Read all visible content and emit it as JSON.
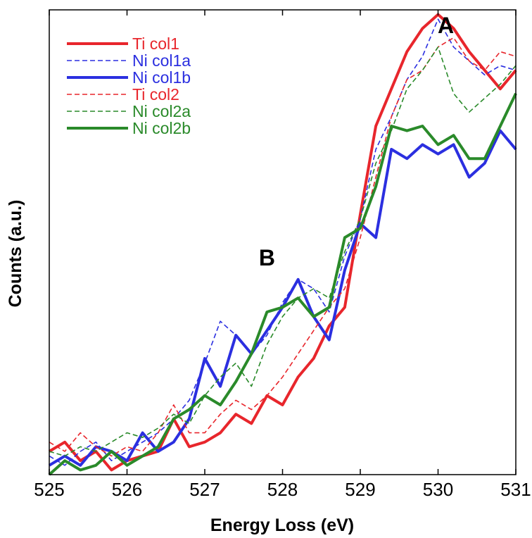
{
  "chart_data": {
    "type": "line",
    "title": "",
    "xlabel": "Energy Loss (eV)",
    "ylabel": "Counts (a.u.)",
    "xlim": [
      525,
      531
    ],
    "ylim": [
      0,
      100
    ],
    "xticks": [
      "525",
      "526",
      "527",
      "528",
      "529",
      "530",
      "531"
    ],
    "grid": false,
    "legend_position": "top-left",
    "annotations": [
      {
        "text": "A",
        "x": 530.1,
        "y": 95
      },
      {
        "text": "B",
        "x": 527.8,
        "y": 45
      }
    ],
    "x": [
      525.0,
      525.2,
      525.4,
      525.6,
      525.8,
      526.0,
      526.2,
      526.4,
      526.6,
      526.8,
      527.0,
      527.2,
      527.4,
      527.6,
      527.8,
      528.0,
      528.2,
      528.4,
      528.6,
      528.8,
      529.0,
      529.2,
      529.4,
      529.6,
      529.8,
      530.0,
      530.2,
      530.4,
      530.6,
      530.8,
      531.0
    ],
    "series": [
      {
        "name": "Ti col1",
        "color": "#e8262c",
        "style": "solid",
        "values": [
          5,
          7,
          3,
          5,
          1,
          3,
          4,
          5,
          12,
          6,
          7,
          9,
          13,
          11,
          17,
          15,
          21,
          25,
          32,
          36,
          56,
          75,
          83,
          91,
          96,
          99,
          96,
          91,
          87,
          83,
          87
        ]
      },
      {
        "name": "Ni col1a",
        "color": "#2b2fe0",
        "style": "dashed",
        "values": [
          4,
          2,
          5,
          7,
          3,
          5,
          7,
          9,
          12,
          16,
          24,
          33,
          30,
          26,
          30,
          37,
          42,
          40,
          35,
          47,
          55,
          70,
          77,
          85,
          90,
          98,
          92,
          89,
          86,
          88,
          87
        ]
      },
      {
        "name": "Ni col1b",
        "color": "#2b2fe0",
        "style": "solid",
        "values": [
          2,
          4,
          2,
          6,
          5,
          3,
          9,
          5,
          7,
          12,
          25,
          19,
          30,
          26,
          31,
          36,
          42,
          34,
          29,
          44,
          54,
          51,
          70,
          68,
          71,
          69,
          71,
          64,
          67,
          74,
          70
        ]
      },
      {
        "name": "Ti col2",
        "color": "#e8262c",
        "style": "dashed",
        "values": [
          7,
          5,
          9,
          6,
          4,
          6,
          5,
          9,
          15,
          9,
          9,
          13,
          16,
          14,
          17,
          21,
          26,
          31,
          36,
          40,
          51,
          64,
          77,
          85,
          87,
          92,
          94,
          89,
          87,
          91,
          90
        ]
      },
      {
        "name": "Ni col2a",
        "color": "#2a8a2a",
        "style": "dashed",
        "values": [
          5,
          4,
          6,
          5,
          7,
          9,
          8,
          10,
          13,
          11,
          17,
          21,
          24,
          19,
          28,
          34,
          38,
          40,
          38,
          48,
          55,
          67,
          74,
          83,
          87,
          92,
          82,
          78,
          81,
          84,
          88
        ]
      },
      {
        "name": "Ni col2b",
        "color": "#2a8a2a",
        "style": "solid",
        "values": [
          0,
          3,
          1,
          2,
          5,
          2,
          4,
          6,
          12,
          14,
          17,
          15,
          20,
          26,
          35,
          36,
          38,
          34,
          36,
          51,
          53,
          62,
          75,
          74,
          75,
          71,
          73,
          68,
          68,
          75,
          82
        ]
      }
    ]
  }
}
